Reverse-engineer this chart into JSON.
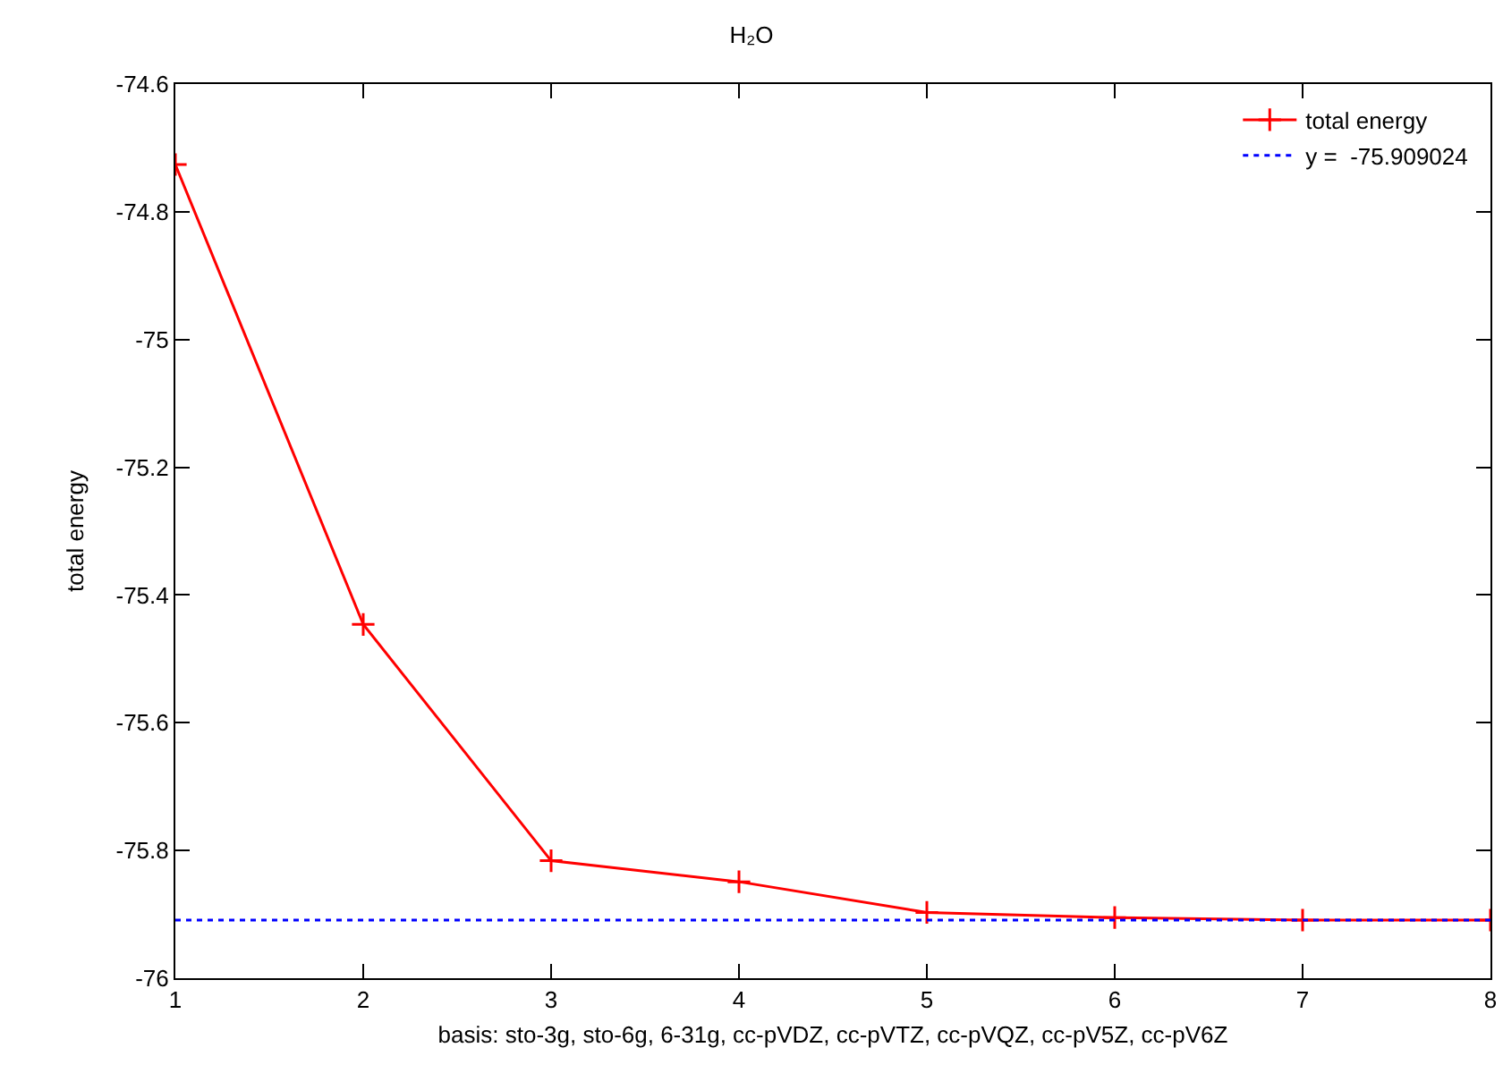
{
  "chart_data": {
    "type": "line",
    "title": "H₂O",
    "xlabel": "basis: sto-3g, sto-6g, 6-31g, cc-pVDZ, cc-pVTZ, cc-pVQZ, cc-pV5Z, cc-pV6Z",
    "ylabel": "total energy",
    "x": [
      1,
      2,
      3,
      4,
      5,
      6,
      7,
      8
    ],
    "series": [
      {
        "name": "total energy",
        "color": "#ff0000",
        "values": [
          -74.726,
          -75.446,
          -75.816,
          -75.849,
          -75.897,
          -75.905,
          -75.909,
          -75.909
        ]
      }
    ],
    "ref_lines": [
      {
        "axis": "y",
        "value": -75.909024,
        "label": "y =  -75.909024",
        "color": "#0000ff",
        "line_style": "dotted"
      }
    ],
    "xlim": [
      1,
      8
    ],
    "xticks": [
      1,
      2,
      3,
      4,
      5,
      6,
      7,
      8
    ],
    "ylim": [
      -76,
      -74.6
    ],
    "yticks": [
      -76,
      -75.8,
      -75.6,
      -75.4,
      -75.2,
      -75,
      -74.8,
      -74.6
    ],
    "grid": false,
    "legend": "top right",
    "marker": "cross",
    "line_style": "solid"
  }
}
